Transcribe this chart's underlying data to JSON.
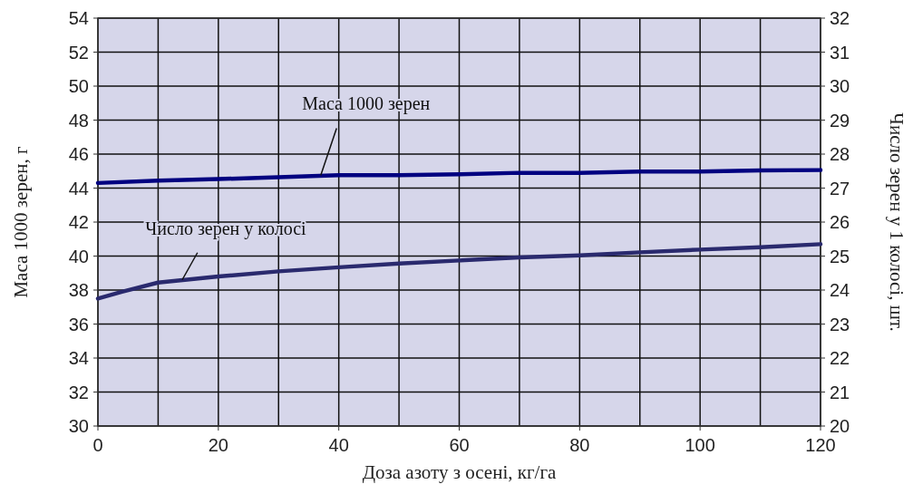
{
  "chart_data": {
    "type": "line",
    "xlabel": "Доза азоту з осені, кг/га",
    "ylabel": "Маса 1000 зерен, г",
    "y2label": "Число зерен у 1 колосі, шт.",
    "xlim": [
      0,
      120
    ],
    "xticks": [
      0,
      20,
      40,
      60,
      80,
      100,
      120
    ],
    "ylim": [
      30,
      54
    ],
    "yticks": [
      30,
      32,
      34,
      36,
      38,
      40,
      42,
      44,
      46,
      48,
      50,
      52,
      54
    ],
    "y2lim": [
      20,
      32
    ],
    "y2ticks": [
      20,
      21,
      22,
      23,
      24,
      25,
      26,
      27,
      28,
      29,
      30,
      31,
      32
    ],
    "grid": true,
    "marker": "none",
    "line_style": "solid",
    "series": [
      {
        "color": "#000080",
        "x": [
          0,
          10,
          20,
          30,
          40,
          50,
          60,
          70,
          80,
          90,
          100,
          110,
          120
        ],
        "values": [
          44.3,
          44.44,
          44.53,
          44.64,
          44.76,
          44.76,
          44.81,
          44.9,
          44.9,
          44.97,
          44.97,
          45.04,
          45.06
        ]
      },
      {
        "color": "#2a2a6e",
        "axis": "y2",
        "x": [
          0,
          4,
          10,
          20,
          30,
          40,
          50,
          60,
          70,
          80,
          90,
          100,
          110,
          120
        ],
        "values": [
          23.75,
          23.95,
          24.22,
          24.4,
          24.55,
          24.67,
          24.78,
          24.87,
          24.96,
          25.02,
          25.11,
          25.19,
          25.26,
          25.35
        ]
      }
    ],
    "annotations": [
      {
        "text": "Маса 1000 зерен",
        "x": 37,
        "y": 44.75
      },
      {
        "text": "Число зерен у колосі",
        "x": 14,
        "y": 38.6
      }
    ]
  }
}
